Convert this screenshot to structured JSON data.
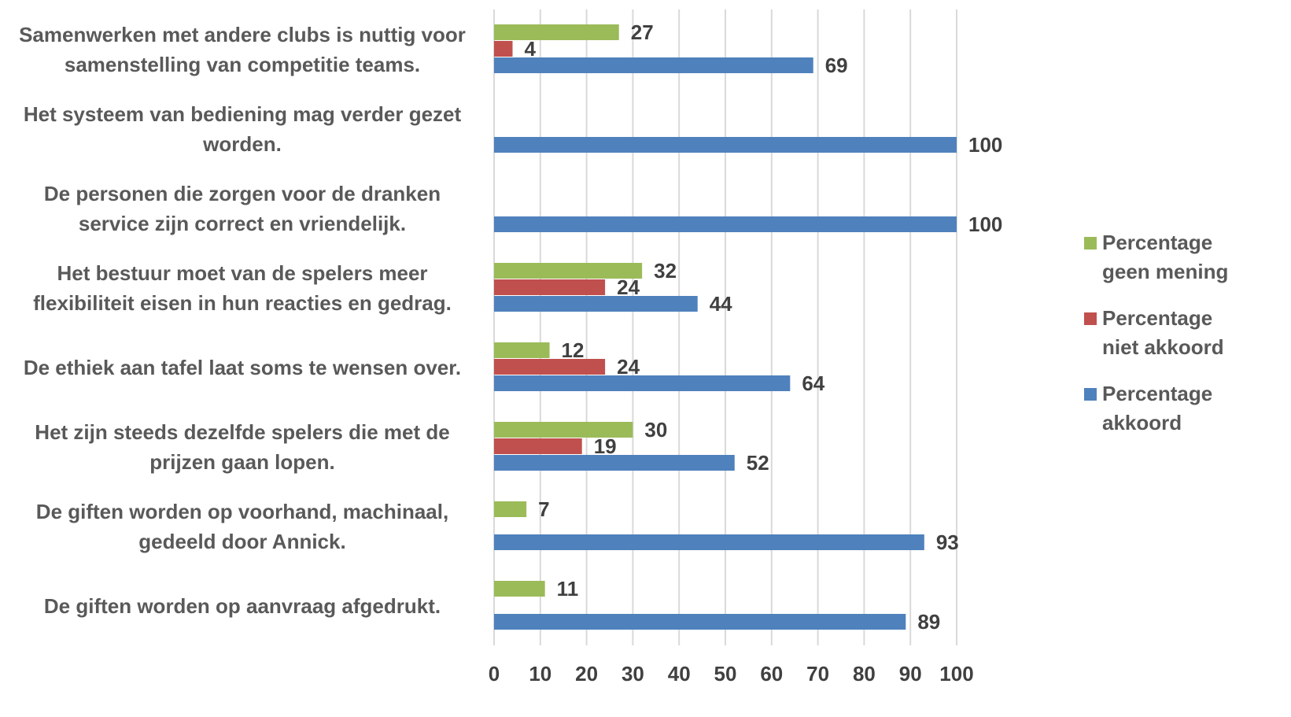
{
  "chart_data": {
    "type": "bar",
    "orientation": "horizontal",
    "categories": [
      "Samenwerken met andere clubs is nuttig voor samenstelling van competitie teams.",
      "Het systeem van bediening mag verder gezet worden.",
      "De personen die zorgen voor de dranken service zijn correct en vriendelijk.",
      "Het bestuur moet van de spelers meer flexibiliteit eisen in hun reacties en gedrag.",
      "De ethiek aan tafel laat soms te wensen over.",
      "Het zijn steeds dezelfde spelers die met de prijzen gaan lopen.",
      "De giften worden op voorhand, machinaal, gedeeld door Annick.",
      "De giften worden op aanvraag afgedrukt."
    ],
    "series": [
      {
        "name": "Percentage geen mening",
        "color": "#9bbb59",
        "values": [
          27,
          null,
          null,
          32,
          12,
          30,
          7,
          11
        ]
      },
      {
        "name": "Percentage niet akkoord",
        "color": "#c0504d",
        "values": [
          4,
          null,
          null,
          24,
          24,
          19,
          null,
          null
        ]
      },
      {
        "name": "Percentage akkoord",
        "color": "#4f81bd",
        "values": [
          69,
          100,
          100,
          44,
          64,
          52,
          93,
          89
        ]
      }
    ],
    "xlim": [
      0,
      100
    ],
    "xticks": [
      0,
      10,
      20,
      30,
      40,
      50,
      60,
      70,
      80,
      90,
      100
    ],
    "grid": true,
    "legend": "right"
  }
}
